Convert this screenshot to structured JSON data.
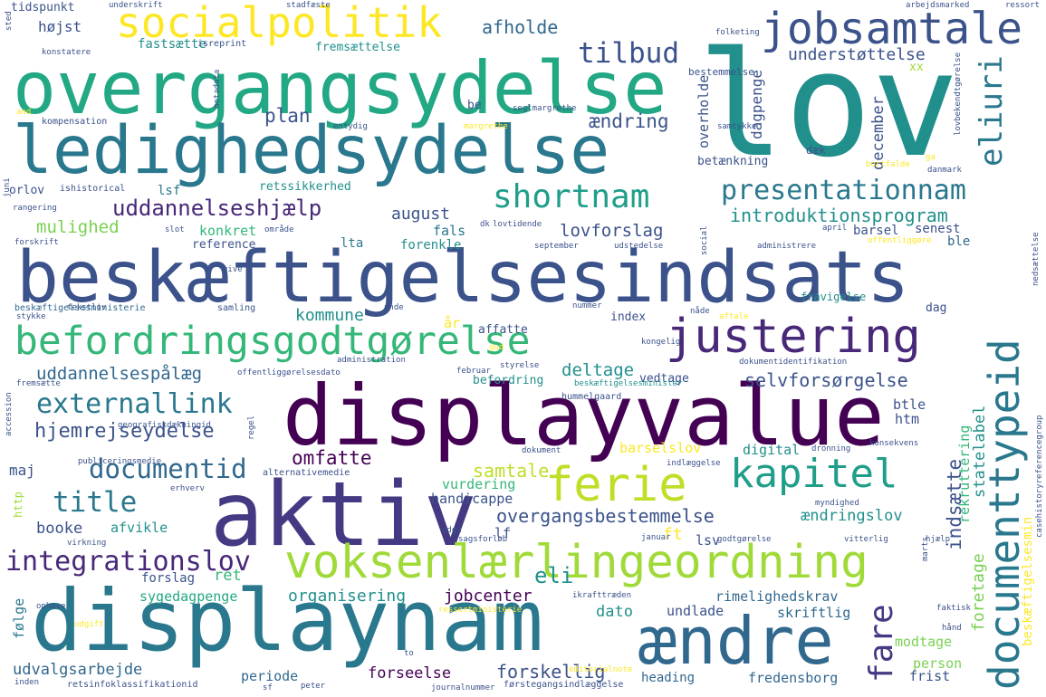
{
  "words": [
    {
      "text": "lov",
      "color": "#21908c"
    },
    {
      "text": "overgangsydelse",
      "color": "#22a884"
    },
    {
      "text": "ledighedsydelse",
      "color": "#2a788e"
    },
    {
      "text": "beskæftigelsesindsats",
      "color": "#3b528b"
    },
    {
      "text": "displayvalue",
      "color": "#440154"
    },
    {
      "text": "aktiv",
      "color": "#443983"
    },
    {
      "text": "displaynam",
      "color": "#2a788e"
    },
    {
      "text": "ændre",
      "color": "#31688e"
    },
    {
      "text": "socialpolitik",
      "color": "#fde725"
    },
    {
      "text": "jobsamtale",
      "color": "#3b528b"
    },
    {
      "text": "befordringsgodtgørelse",
      "color": "#35b779"
    },
    {
      "text": "justering",
      "color": "#482878"
    },
    {
      "text": "voksenlærlingeordning",
      "color": "#a0da39"
    },
    {
      "text": "ferie",
      "color": "#bddf26"
    },
    {
      "text": "kapitel",
      "color": "#1f9e89"
    },
    {
      "text": "shortnam",
      "color": "#1f9e89"
    },
    {
      "text": "presentationnam",
      "color": "#2a788e"
    },
    {
      "text": "documenttypeid",
      "color": "#2a788e"
    },
    {
      "text": "externallink",
      "color": "#2a788e"
    },
    {
      "text": "integrationslov",
      "color": "#482878"
    },
    {
      "text": "documentid",
      "color": "#31688e"
    },
    {
      "text": "title",
      "color": "#2a788e"
    },
    {
      "text": "tilbud",
      "color": "#3b528b"
    },
    {
      "text": "eliuri",
      "color": "#2a788e"
    },
    {
      "text": "fare",
      "color": "#443983"
    },
    {
      "text": "hjemrejseydelse",
      "color": "#3b528b"
    },
    {
      "text": "uddannelseshjælp",
      "color": "#482878"
    },
    {
      "text": "introduktionsprogram",
      "color": "#21908c"
    },
    {
      "text": "overgangsbestemmelse",
      "color": "#3b528b"
    },
    {
      "text": "omfatte",
      "color": "#440154"
    },
    {
      "text": "selvforsørgelse",
      "color": "#3b528b"
    },
    {
      "text": "uddannelsespålæg",
      "color": "#31688e"
    },
    {
      "text": "afholde",
      "color": "#31688e"
    },
    {
      "text": "understøttelse",
      "color": "#3b528b"
    },
    {
      "text": "ændring",
      "color": "#3b528b"
    },
    {
      "text": "plan",
      "color": "#3b528b"
    },
    {
      "text": "mulighed",
      "color": "#7ad151"
    },
    {
      "text": "konkret",
      "color": "#35b779"
    },
    {
      "text": "august",
      "color": "#3b528b"
    },
    {
      "text": "lovforslag",
      "color": "#3b528b"
    },
    {
      "text": "deltage",
      "color": "#21908c"
    },
    {
      "text": "kommune",
      "color": "#21908c"
    },
    {
      "text": "samtale",
      "color": "#bddf26"
    },
    {
      "text": "organisering",
      "color": "#21908c"
    },
    {
      "text": "jobcenter",
      "color": "#440154"
    },
    {
      "text": "dato",
      "color": "#21908c"
    },
    {
      "text": "ændringslov",
      "color": "#21908c"
    },
    {
      "text": "rimelighedskrav",
      "color": "#31688e"
    },
    {
      "text": "skriftlig",
      "color": "#31688e"
    },
    {
      "text": "forskellig",
      "color": "#3b528b"
    },
    {
      "text": "udvalgsarbejde",
      "color": "#31688e"
    },
    {
      "text": "fredensborg",
      "color": "#31688e"
    },
    {
      "text": "forseelse",
      "color": "#440154"
    },
    {
      "text": "periode",
      "color": "#31688e"
    },
    {
      "text": "heading",
      "color": "#31688e"
    },
    {
      "text": "december",
      "color": "#3b528b"
    },
    {
      "text": "dagpenge",
      "color": "#3b528b"
    },
    {
      "text": "overholde",
      "color": "#3b528b"
    },
    {
      "text": "indsætte",
      "color": "#3b528b"
    },
    {
      "text": "foretage",
      "color": "#7ad151"
    },
    {
      "text": "rekruttering",
      "color": "#35b779"
    },
    {
      "text": "statelabel",
      "color": "#21908c"
    },
    {
      "text": "beskæftigelsesmin",
      "color": "#fde725"
    },
    {
      "text": "htm",
      "color": "#3b528b"
    },
    {
      "text": "btle",
      "color": "#3b528b"
    },
    {
      "text": "digital",
      "color": "#21908c"
    },
    {
      "text": "barselslov",
      "color": "#fde725"
    },
    {
      "text": "vurdering",
      "color": "#35b779"
    },
    {
      "text": "handicappe",
      "color": "#3b528b"
    },
    {
      "text": "booke",
      "color": "#3b528b"
    },
    {
      "text": "afvikle",
      "color": "#21908c"
    },
    {
      "text": "maj",
      "color": "#3b528b"
    },
    {
      "text": "forslag",
      "color": "#3b528b"
    },
    {
      "text": "ret",
      "color": "#35b779"
    },
    {
      "text": "sygedagpenge",
      "color": "#22a884"
    },
    {
      "text": "følge",
      "color": "#2a788e"
    },
    {
      "text": "eli",
      "color": "#21908c"
    },
    {
      "text": "ft",
      "color": "#fde725"
    },
    {
      "text": "lsv",
      "color": "#3b528b"
    },
    {
      "text": "lf",
      "color": "#3b528b"
    },
    {
      "text": "modtage",
      "color": "#7ad151"
    },
    {
      "text": "person",
      "color": "#7ad151"
    },
    {
      "text": "frist",
      "color": "#3b528b"
    },
    {
      "text": "undlade",
      "color": "#3b528b"
    },
    {
      "text": "fals",
      "color": "#2a788e"
    },
    {
      "text": "lta",
      "color": "#2a788e"
    },
    {
      "text": "forenkle",
      "color": "#21908c"
    },
    {
      "text": "barsel",
      "color": "#3b528b"
    },
    {
      "text": "senest",
      "color": "#3b528b"
    },
    {
      "text": "ble",
      "color": "#31688e"
    },
    {
      "text": "reference",
      "color": "#3b528b"
    },
    {
      "text": "lsf",
      "color": "#2a788e"
    },
    {
      "text": "orlov",
      "color": "#3b528b"
    },
    {
      "text": "retssikkerhed",
      "color": "#21908c"
    },
    {
      "text": "betænkning",
      "color": "#3b528b"
    },
    {
      "text": "fastsætte",
      "color": "#21908c"
    },
    {
      "text": "højst",
      "color": "#3b528b"
    },
    {
      "text": "tidspunkt",
      "color": "#3b528b"
    },
    {
      "text": "fremsættelse",
      "color": "#21908c"
    },
    {
      "text": "bestemmelse",
      "color": "#3b528b"
    },
    {
      "text": "be",
      "color": "#3b528b"
    },
    {
      "text": "xx",
      "color": "#a0da39"
    },
    {
      "text": "dæk",
      "color": "#3b528b"
    },
    {
      "text": "index",
      "color": "#3b528b"
    },
    {
      "text": "affatte",
      "color": "#3b528b"
    },
    {
      "text": "år",
      "color": "#fde725"
    },
    {
      "text": "befordring",
      "color": "#21908c"
    },
    {
      "text": "vedtage",
      "color": "#3b528b"
    },
    {
      "text": "fravigelse",
      "color": "#21908c"
    },
    {
      "text": "dag",
      "color": "#3b528b"
    },
    {
      "text": "http",
      "color": "#a0da39"
    },
    {
      "text": "kompensation",
      "color": "#3b528b"
    },
    {
      "text": "isreprint",
      "color": "#3b528b"
    },
    {
      "text": "ishistorical",
      "color": "#3b528b"
    },
    {
      "text": "samling",
      "color": "#3b528b"
    },
    {
      "text": "tekstlov",
      "color": "#3b528b"
    },
    {
      "text": "beskæftigelsesministerie",
      "color": "#31688e"
    },
    {
      "text": "hummelgaard",
      "color": "#3b528b"
    },
    {
      "text": "beskæftigelsesminister",
      "color": "#21908c"
    },
    {
      "text": "alternativemedie",
      "color": "#3b528b"
    },
    {
      "text": "editorialnote",
      "color": "#fde725"
    },
    {
      "text": "førstegangsindlæggelse",
      "color": "#3b528b"
    },
    {
      "text": "retsinfoklassifikationid",
      "color": "#3b528b"
    },
    {
      "text": "dokumentidentifikation",
      "color": "#3b528b"
    },
    {
      "text": "offentliggørelsesdato",
      "color": "#3b528b"
    },
    {
      "text": "casehistoryreferencegroup",
      "color": "#3b528b"
    },
    {
      "text": "konsekvens",
      "color": "#3b528b"
    },
    {
      "text": "dronning",
      "color": "#3b528b"
    },
    {
      "text": "indlæggelse",
      "color": "#3b528b"
    },
    {
      "text": "geografiskdækningid",
      "color": "#3b528b"
    },
    {
      "text": "publiceringsmedie",
      "color": "#3b528b"
    },
    {
      "text": "ressortministerie",
      "color": "#fde725"
    },
    {
      "text": "ikrafttræden",
      "color": "#3b528b"
    },
    {
      "text": "myndighed",
      "color": "#3b528b"
    },
    {
      "text": "godtgørelse",
      "color": "#3b528b"
    },
    {
      "text": "sagsforløb",
      "color": "#3b528b"
    },
    {
      "text": "vitterlig",
      "color": "#3b528b"
    },
    {
      "text": "januar",
      "color": "#3b528b"
    },
    {
      "text": "hjælp",
      "color": "#3b528b"
    },
    {
      "text": "faktisk",
      "color": "#3b528b"
    },
    {
      "text": "hånd",
      "color": "#3b528b"
    },
    {
      "text": "journalnummer",
      "color": "#3b528b"
    },
    {
      "text": "peter",
      "color": "#3b528b"
    },
    {
      "text": "sf",
      "color": "#3b528b"
    },
    {
      "text": "inden",
      "color": "#3b528b"
    },
    {
      "text": "udgift",
      "color": "#fde725"
    },
    {
      "text": "ophæve",
      "color": "#3b528b"
    },
    {
      "text": "virkning",
      "color": "#3b528b"
    },
    {
      "text": "erhverv",
      "color": "#3b528b"
    },
    {
      "text": "dokument",
      "color": "#3b528b"
    },
    {
      "text": "udgå",
      "color": "#3b528b"
    },
    {
      "text": "fremsætte",
      "color": "#3b528b"
    },
    {
      "text": "accession",
      "color": "#3b528b"
    },
    {
      "text": "regel",
      "color": "#3b528b"
    },
    {
      "text": "februar",
      "color": "#3b528b"
    },
    {
      "text": "styrelse",
      "color": "#3b528b"
    },
    {
      "text": "administration",
      "color": "#3b528b"
    },
    {
      "text": "gud",
      "color": "#fde725"
    },
    {
      "text": "kongelig",
      "color": "#3b528b"
    },
    {
      "text": "nåde",
      "color": "#3b528b"
    },
    {
      "text": "aftale",
      "color": "#fde725"
    },
    {
      "text": "nummer",
      "color": "#3b528b"
    },
    {
      "text": "unde",
      "color": "#3b528b"
    },
    {
      "text": "stykke",
      "color": "#3b528b"
    },
    {
      "text": "give",
      "color": "#3b528b"
    },
    {
      "text": "forskrift",
      "color": "#3b528b"
    },
    {
      "text": "område",
      "color": "#3b528b"
    },
    {
      "text": "slot",
      "color": "#3b528b"
    },
    {
      "text": "dk",
      "color": "#3b528b"
    },
    {
      "text": "lovtidende",
      "color": "#3b528b"
    },
    {
      "text": "september",
      "color": "#3b528b"
    },
    {
      "text": "udstedelse",
      "color": "#3b528b"
    },
    {
      "text": "social",
      "color": "#3b528b"
    },
    {
      "text": "april",
      "color": "#3b528b"
    },
    {
      "text": "administrere",
      "color": "#3b528b"
    },
    {
      "text": "offentliggøre",
      "color": "#fde725"
    },
    {
      "text": "nedsættelse",
      "color": "#3b528b"
    },
    {
      "text": "rangering",
      "color": "#3b528b"
    },
    {
      "text": "juni",
      "color": "#3b528b"
    },
    {
      "text": "underskrift",
      "color": "#3b528b"
    },
    {
      "text": "stadfæste",
      "color": "#3b528b"
    },
    {
      "text": "arbejdsmarked",
      "color": "#3b528b"
    },
    {
      "text": "ressort",
      "color": "#3b528b"
    },
    {
      "text": "konstatere",
      "color": "#3b528b"
    },
    {
      "text": "folketing",
      "color": "#3b528b"
    },
    {
      "text": "sted",
      "color": "#3b528b"
    },
    {
      "text": "metadata",
      "color": "#3b528b"
    },
    {
      "text": "and",
      "color": "#fde725"
    },
    {
      "text": "entydig",
      "color": "#3b528b"
    },
    {
      "text": "margrethe",
      "color": "#fde725"
    },
    {
      "text": "seglmargrethe",
      "color": "#3b528b"
    },
    {
      "text": "samtykke",
      "color": "#3b528b"
    },
    {
      "text": "bortfalde",
      "color": "#fde725"
    },
    {
      "text": "lovbekendtgørelse",
      "color": "#3b528b"
    },
    {
      "text": "danmark",
      "color": "#3b528b"
    },
    {
      "text": "ga",
      "color": "#fde725"
    },
    {
      "text": "marts",
      "color": "#3b528b"
    },
    {
      "text": "to",
      "color": "#3b528b"
    }
  ]
}
